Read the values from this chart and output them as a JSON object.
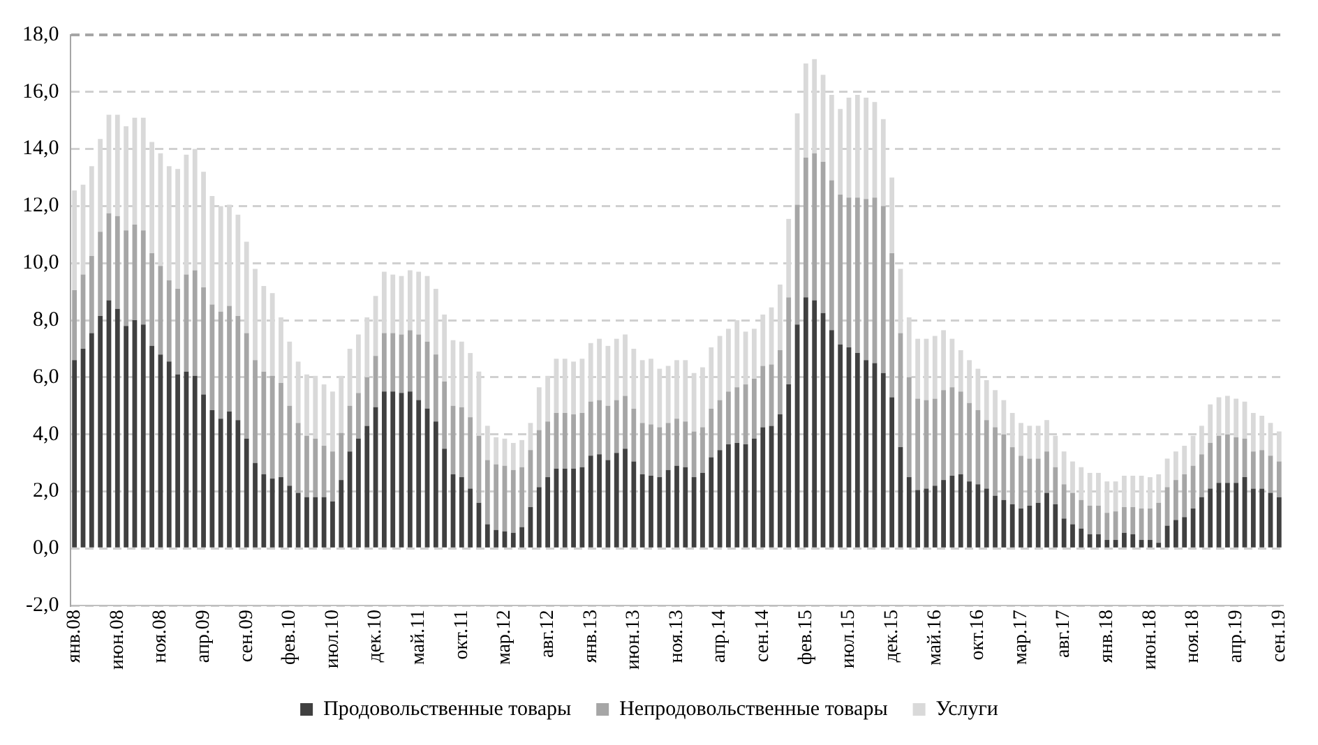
{
  "chart_data": {
    "type": "bar",
    "stacked": true,
    "grid": "y",
    "legend": "bottom",
    "categories": [
      "янв.08",
      null,
      null,
      null,
      null,
      "июн.08",
      null,
      null,
      null,
      null,
      "ноя.08",
      null,
      null,
      null,
      null,
      "апр.09",
      null,
      null,
      null,
      null,
      "сен.09",
      null,
      null,
      null,
      null,
      "фев.10",
      null,
      null,
      null,
      null,
      "июл.10",
      null,
      null,
      null,
      null,
      "дек.10",
      null,
      null,
      null,
      null,
      "май.11",
      null,
      null,
      null,
      null,
      "окт.11",
      null,
      null,
      null,
      null,
      "мар.12",
      null,
      null,
      null,
      null,
      "авг.12",
      null,
      null,
      null,
      null,
      "янв.13",
      null,
      null,
      null,
      null,
      "июн.13",
      null,
      null,
      null,
      null,
      "ноя.13",
      null,
      null,
      null,
      null,
      "апр.14",
      null,
      null,
      null,
      null,
      "сен.14",
      null,
      null,
      null,
      null,
      "фев.15",
      null,
      null,
      null,
      null,
      "июл.15",
      null,
      null,
      null,
      null,
      "дек.15",
      null,
      null,
      null,
      null,
      "май.16",
      null,
      null,
      null,
      null,
      "окт.16",
      null,
      null,
      null,
      null,
      "мар.17",
      null,
      null,
      null,
      null,
      "авг.17",
      null,
      null,
      null,
      null,
      "янв.18",
      null,
      null,
      null,
      null,
      "июн.18",
      null,
      null,
      null,
      null,
      "ноя.18",
      null,
      null,
      null,
      null,
      "апр.19",
      null,
      null,
      null,
      null,
      "сен.19"
    ],
    "ylim": [
      -2,
      18
    ],
    "yticks": [
      {
        "value": -2,
        "label": "-2,0"
      },
      {
        "value": 0,
        "label": "0,0"
      },
      {
        "value": 2,
        "label": "2,0"
      },
      {
        "value": 4,
        "label": "4,0"
      },
      {
        "value": 6,
        "label": "6,0"
      },
      {
        "value": 8,
        "label": "8,0"
      },
      {
        "value": 10,
        "label": "10,0"
      },
      {
        "value": 12,
        "label": "12,0"
      },
      {
        "value": 14,
        "label": "14,0"
      },
      {
        "value": 16,
        "label": "16,0"
      },
      {
        "value": 18,
        "label": "18,0"
      }
    ],
    "series": [
      {
        "name": "Продовольственные товары",
        "color": "#404040",
        "values": [
          6.6,
          7.0,
          7.55,
          8.15,
          8.7,
          8.4,
          7.8,
          8.0,
          7.85,
          7.1,
          6.8,
          6.55,
          6.1,
          6.2,
          6.05,
          5.4,
          4.85,
          4.55,
          4.8,
          4.5,
          3.85,
          3.0,
          2.6,
          2.45,
          2.5,
          2.2,
          1.95,
          1.8,
          1.8,
          1.8,
          1.65,
          2.4,
          3.4,
          3.85,
          4.3,
          4.95,
          5.5,
          5.5,
          5.45,
          5.5,
          5.2,
          4.9,
          4.45,
          3.5,
          2.6,
          2.5,
          2.1,
          1.6,
          0.85,
          0.65,
          0.6,
          0.55,
          0.75,
          1.45,
          2.15,
          2.5,
          2.8,
          2.8,
          2.8,
          2.85,
          3.25,
          3.3,
          3.1,
          3.35,
          3.5,
          3.05,
          2.6,
          2.55,
          2.5,
          2.75,
          2.9,
          2.85,
          2.5,
          2.65,
          3.2,
          3.45,
          3.65,
          3.7,
          3.65,
          3.85,
          4.25,
          4.3,
          4.7,
          5.75,
          7.85,
          8.8,
          8.7,
          8.25,
          7.65,
          7.15,
          7.05,
          6.85,
          6.6,
          6.5,
          6.15,
          5.3,
          3.55,
          2.5,
          2.05,
          2.1,
          2.2,
          2.4,
          2.55,
          2.6,
          2.35,
          2.25,
          2.1,
          1.85,
          1.7,
          1.55,
          1.4,
          1.5,
          1.6,
          1.95,
          1.55,
          1.05,
          0.85,
          0.7,
          0.5,
          0.5,
          0.3,
          0.3,
          0.55,
          0.5,
          0.3,
          0.3,
          0.2,
          0.8,
          1.0,
          1.1,
          1.4,
          1.8,
          2.1,
          2.3,
          2.3,
          2.3,
          2.5,
          2.1,
          2.1,
          1.95,
          1.8
        ]
      },
      {
        "name": "Непродовольственные товары",
        "color": "#a6a6a6",
        "values": [
          2.45,
          2.6,
          2.7,
          2.95,
          3.05,
          3.25,
          3.35,
          3.35,
          3.3,
          3.25,
          3.1,
          2.85,
          3.0,
          3.4,
          3.7,
          3.75,
          3.7,
          3.75,
          3.7,
          3.65,
          3.7,
          3.6,
          3.6,
          3.6,
          3.3,
          2.8,
          2.45,
          2.15,
          2.05,
          1.8,
          1.75,
          1.65,
          1.6,
          1.6,
          1.7,
          1.8,
          2.05,
          2.05,
          2.05,
          2.15,
          2.3,
          2.35,
          2.35,
          2.35,
          2.4,
          2.45,
          2.5,
          2.35,
          2.25,
          2.3,
          2.3,
          2.2,
          2.1,
          2.0,
          2.0,
          1.95,
          1.95,
          1.95,
          1.9,
          1.9,
          1.9,
          1.9,
          1.9,
          1.85,
          1.85,
          1.85,
          1.8,
          1.8,
          1.75,
          1.65,
          1.65,
          1.6,
          1.6,
          1.6,
          1.7,
          1.75,
          1.85,
          1.95,
          2.1,
          2.1,
          2.15,
          2.15,
          2.25,
          3.05,
          4.2,
          4.9,
          5.15,
          5.3,
          5.25,
          5.25,
          5.25,
          5.45,
          5.65,
          5.8,
          5.85,
          5.05,
          4.0,
          3.5,
          3.2,
          3.1,
          3.05,
          3.15,
          3.1,
          2.9,
          2.75,
          2.6,
          2.4,
          2.4,
          2.3,
          2.0,
          1.85,
          1.65,
          1.55,
          1.45,
          1.3,
          1.2,
          1.1,
          1.0,
          1.0,
          1.0,
          0.95,
          1.0,
          0.9,
          0.95,
          1.1,
          1.1,
          1.4,
          1.35,
          1.4,
          1.5,
          1.5,
          1.5,
          1.6,
          1.65,
          1.7,
          1.6,
          1.35,
          1.3,
          1.35,
          1.3,
          1.25
        ]
      },
      {
        "name": "Услуги",
        "color": "#d9d9d9",
        "values": [
          3.5,
          3.15,
          3.15,
          3.25,
          3.45,
          3.55,
          3.65,
          3.75,
          3.95,
          3.9,
          3.95,
          4.0,
          4.2,
          4.2,
          4.25,
          4.05,
          3.8,
          3.7,
          3.55,
          3.55,
          3.2,
          3.2,
          3.0,
          2.9,
          2.3,
          2.25,
          2.15,
          2.15,
          2.2,
          2.15,
          2.1,
          2.0,
          2.0,
          2.05,
          2.1,
          2.1,
          2.15,
          2.05,
          2.05,
          2.1,
          2.2,
          2.3,
          2.3,
          2.35,
          2.3,
          2.3,
          2.25,
          2.25,
          1.2,
          0.95,
          0.95,
          0.95,
          0.95,
          0.95,
          1.5,
          1.6,
          1.9,
          1.9,
          1.85,
          1.9,
          2.05,
          2.15,
          2.1,
          2.15,
          2.15,
          2.1,
          2.2,
          2.3,
          2.05,
          2.0,
          2.05,
          2.15,
          2.05,
          2.1,
          2.15,
          2.25,
          2.2,
          2.35,
          1.85,
          1.75,
          1.8,
          2.0,
          2.3,
          2.75,
          3.2,
          3.3,
          3.3,
          3.05,
          3.0,
          3.0,
          3.5,
          3.6,
          3.55,
          3.35,
          3.05,
          2.65,
          2.25,
          2.1,
          2.1,
          2.15,
          2.2,
          2.1,
          1.7,
          1.45,
          1.5,
          1.45,
          1.4,
          1.3,
          1.2,
          1.2,
          1.15,
          1.15,
          1.15,
          1.1,
          1.1,
          1.15,
          1.1,
          1.15,
          1.15,
          1.15,
          1.1,
          1.05,
          1.1,
          1.1,
          1.15,
          1.1,
          1.0,
          1.0,
          1.0,
          1.0,
          1.05,
          1.0,
          1.35,
          1.35,
          1.35,
          1.35,
          1.3,
          1.35,
          1.2,
          1.15,
          1.05
        ]
      }
    ]
  }
}
